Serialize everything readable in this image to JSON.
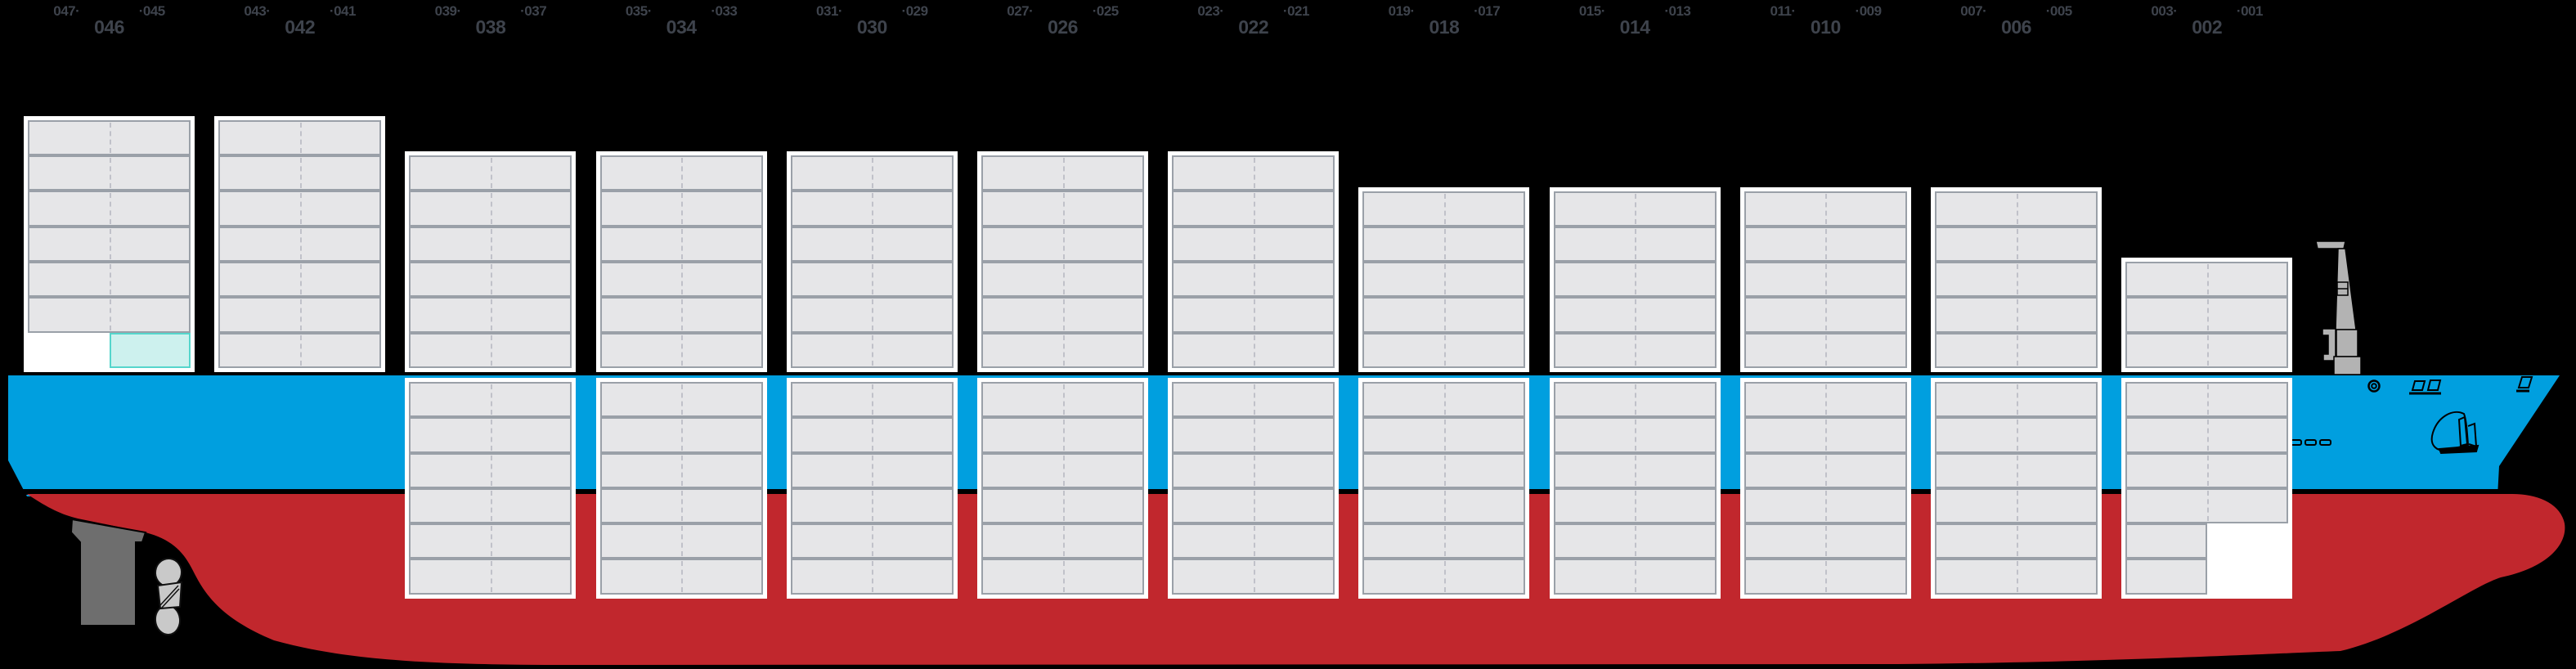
{
  "view": {
    "type": "vessel-side-profile-stowage-plan",
    "orientation": "bow-right-stern-left"
  },
  "colors": {
    "background": "#000000",
    "hull_topside_blue": "#009fdf",
    "hull_underwater_red": "#c1272d",
    "waterline_black": "#000000",
    "slot_fill": "#e6e6e8",
    "slot_border": "#9aa0a8",
    "slot_divider_dash": "#c0c1c9",
    "panel_white": "#ffffff",
    "highlight_fill": "#cdf1ee",
    "highlight_border": "#55d6cc",
    "label_text": "#3e434c",
    "rudder_gray": "#6e6e6e",
    "propeller_gray": "#c9c9c9",
    "mast_gray": "#b3b3b3"
  },
  "icons": [
    "rudder-icon",
    "propeller-icon",
    "bow-mast-icon",
    "porthole-icon",
    "bridge-windows-icon",
    "bow-flag-icon",
    "anchor-icon",
    "pilot-marks-icon"
  ],
  "bays": [
    {
      "labels": {
        "aft": "047·",
        "even": "046",
        "fore": "·045"
      },
      "tiers_above": 7,
      "tiers_below": 0,
      "above_bottom_tier": {
        "aft": "empty",
        "fore": "highlight"
      }
    },
    {
      "labels": {
        "aft": "043·",
        "even": "042",
        "fore": "·041"
      },
      "tiers_above": 7,
      "tiers_below": 0
    },
    {
      "labels": {
        "aft": "039·",
        "even": "038",
        "fore": "·037"
      },
      "tiers_above": 6,
      "tiers_below": 6
    },
    {
      "labels": {
        "aft": "035·",
        "even": "034",
        "fore": "·033"
      },
      "tiers_above": 6,
      "tiers_below": 6
    },
    {
      "labels": {
        "aft": "031·",
        "even": "030",
        "fore": "·029"
      },
      "tiers_above": 6,
      "tiers_below": 6
    },
    {
      "labels": {
        "aft": "027·",
        "even": "026",
        "fore": "·025"
      },
      "tiers_above": 6,
      "tiers_below": 6
    },
    {
      "labels": {
        "aft": "023·",
        "even": "022",
        "fore": "·021"
      },
      "tiers_above": 6,
      "tiers_below": 6
    },
    {
      "labels": {
        "aft": "019·",
        "even": "018",
        "fore": "·017"
      },
      "tiers_above": 5,
      "tiers_below": 6
    },
    {
      "labels": {
        "aft": "015·",
        "even": "014",
        "fore": "·013"
      },
      "tiers_above": 5,
      "tiers_below": 6
    },
    {
      "labels": {
        "aft": "011·",
        "even": "010",
        "fore": "·009"
      },
      "tiers_above": 5,
      "tiers_below": 6
    },
    {
      "labels": {
        "aft": "007·",
        "even": "006",
        "fore": "·005"
      },
      "tiers_above": 5,
      "tiers_below": 6
    },
    {
      "labels": {
        "aft": "003·",
        "even": "002",
        "fore": "·001"
      },
      "tiers_above": 3,
      "tiers_below": 6,
      "hold_partial_bottom_tiers": {
        "count": 2,
        "aft": "gray",
        "fore": "empty"
      }
    }
  ]
}
